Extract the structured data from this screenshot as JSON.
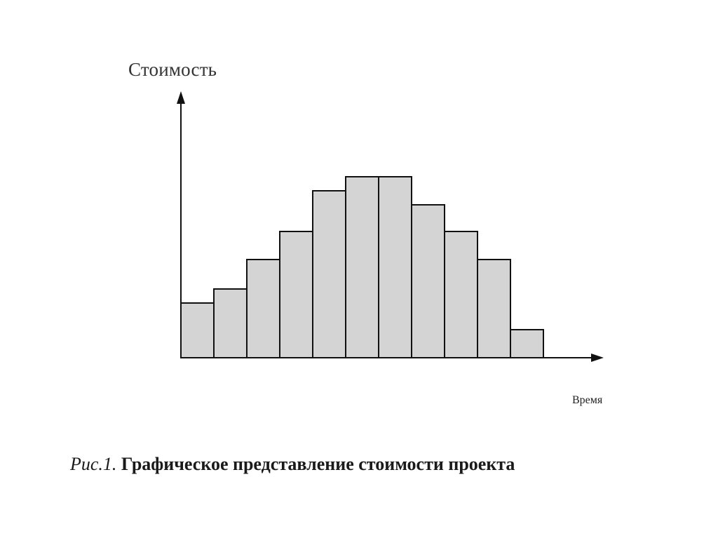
{
  "chart_data": {
    "type": "bar",
    "ylabel": "Стоимость",
    "xlabel": "Время",
    "values": [
      39,
      49,
      70,
      90,
      119,
      129,
      129,
      109,
      90,
      70,
      20
    ],
    "ylim": [
      0,
      175
    ],
    "grid": false,
    "legend": "none",
    "bar_fill": "#d4d4d4",
    "bar_stroke": "#111111"
  },
  "caption": {
    "prefix": "Рис.1.",
    "title": "Графическое представление стоимости проекта"
  }
}
